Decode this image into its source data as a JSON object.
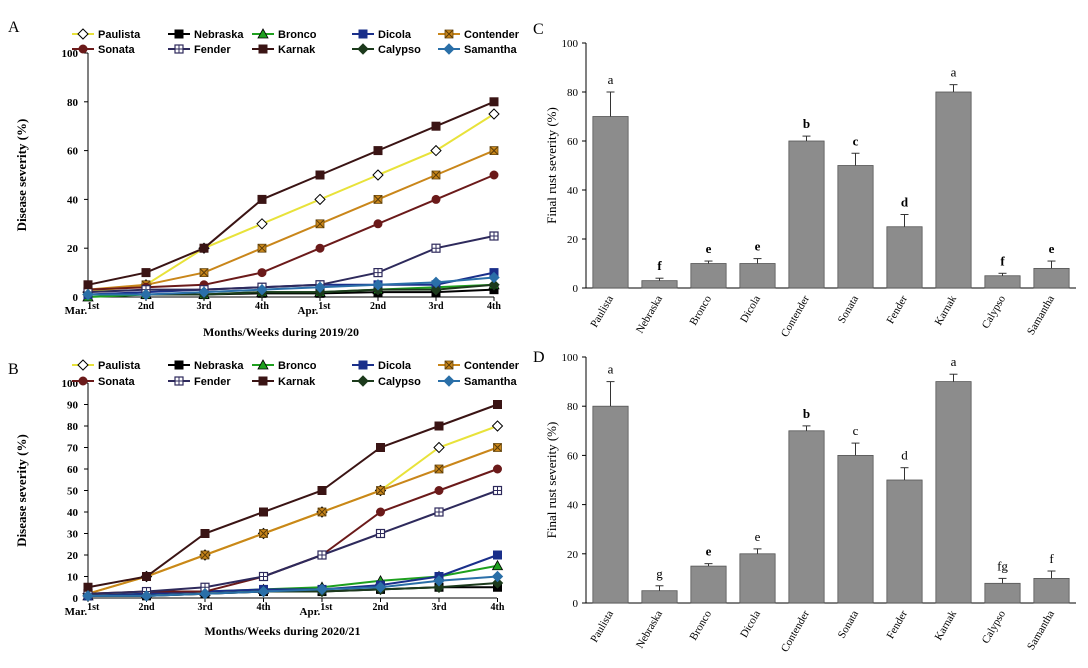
{
  "chart_data": [
    {
      "panel": "A",
      "type": "line",
      "title": "",
      "xlabel": "Months/Weeks during 2019/20",
      "ylabel": "Disease severity (%)",
      "ylim": [
        0,
        100
      ],
      "yticks": [
        0,
        20,
        40,
        60,
        80,
        100
      ],
      "categories": [
        {
          "main": "Mar.",
          "sup": "1st"
        },
        {
          "main": "",
          "sup": "2nd"
        },
        {
          "main": "",
          "sup": "3rd"
        },
        {
          "main": "",
          "sup": "4th"
        },
        {
          "main": "Apr.",
          "sup": "1st"
        },
        {
          "main": "",
          "sup": "2nd"
        },
        {
          "main": "",
          "sup": "3rd"
        },
        {
          "main": "",
          "sup": "4th"
        }
      ],
      "series": [
        {
          "name": "Paulista",
          "color": "#e8e23a",
          "marker": "diamond-open",
          "values": [
            2,
            5,
            20,
            30,
            40,
            50,
            60,
            75
          ]
        },
        {
          "name": "Nebraska",
          "color": "#000000",
          "marker": "square",
          "values": [
            1,
            1,
            1,
            1.5,
            1.5,
            2,
            2,
            3
          ]
        },
        {
          "name": "Bronco",
          "color": "#1ea01e",
          "marker": "triangle",
          "values": [
            0,
            1,
            1,
            2,
            2,
            3,
            4,
            5
          ]
        },
        {
          "name": "Dicola",
          "color": "#1a2f8a",
          "marker": "square",
          "values": [
            1,
            2,
            3,
            4,
            5,
            5,
            5,
            10
          ]
        },
        {
          "name": "Contender",
          "color": "#c9861a",
          "marker": "x-square",
          "values": [
            3,
            5,
            10,
            20,
            30,
            40,
            50,
            60
          ]
        },
        {
          "name": "Sonata",
          "color": "#6b1a1a",
          "marker": "circle",
          "values": [
            3,
            4,
            5,
            10,
            20,
            30,
            40,
            50
          ]
        },
        {
          "name": "Fender",
          "color": "#2e2a5c",
          "marker": "square-open-plus",
          "values": [
            2,
            3,
            3,
            4,
            5,
            10,
            20,
            25
          ]
        },
        {
          "name": "Karnak",
          "color": "#3a1414",
          "marker": "square",
          "values": [
            5,
            10,
            20,
            40,
            50,
            60,
            70,
            80
          ]
        },
        {
          "name": "Calypso",
          "color": "#1c3a1c",
          "marker": "diamond",
          "values": [
            1,
            1,
            1,
            2,
            2,
            3,
            3,
            5
          ]
        },
        {
          "name": "Samantha",
          "color": "#2a6fa8",
          "marker": "diamond",
          "values": [
            1,
            1,
            2,
            3,
            4,
            5,
            6,
            8
          ]
        }
      ]
    },
    {
      "panel": "B",
      "type": "line",
      "title": "",
      "xlabel": "Months/Weeks during 2020/21",
      "ylabel": "Disease severity (%)",
      "ylim": [
        0,
        100
      ],
      "yticks": [
        0,
        10,
        20,
        30,
        40,
        50,
        60,
        70,
        80,
        90,
        100
      ],
      "categories": [
        {
          "main": "Mar.",
          "sup": "1st"
        },
        {
          "main": "",
          "sup": "2nd"
        },
        {
          "main": "",
          "sup": "3rd"
        },
        {
          "main": "",
          "sup": "4th"
        },
        {
          "main": "Apr.",
          "sup": "1st"
        },
        {
          "main": "",
          "sup": "2nd"
        },
        {
          "main": "",
          "sup": "3rd"
        },
        {
          "main": "",
          "sup": "4th"
        }
      ],
      "series": [
        {
          "name": "Paulista",
          "color": "#e8e23a",
          "marker": "diamond-open",
          "values": [
            2,
            10,
            20,
            30,
            40,
            50,
            70,
            80
          ]
        },
        {
          "name": "Nebraska",
          "color": "#000000",
          "marker": "square",
          "values": [
            1,
            1,
            2,
            3,
            3,
            4,
            5,
            5
          ]
        },
        {
          "name": "Bronco",
          "color": "#1ea01e",
          "marker": "triangle",
          "values": [
            1,
            2,
            3,
            4,
            5,
            8,
            10,
            15
          ]
        },
        {
          "name": "Dicola",
          "color": "#1a2f8a",
          "marker": "square",
          "values": [
            1,
            2,
            3,
            4,
            4,
            6,
            10,
            20
          ]
        },
        {
          "name": "Contender",
          "color": "#c9861a",
          "marker": "x-square",
          "values": [
            2,
            10,
            20,
            30,
            40,
            50,
            60,
            70
          ]
        },
        {
          "name": "Sonata",
          "color": "#6b1a1a",
          "marker": "circle",
          "values": [
            2,
            3,
            3,
            10,
            20,
            40,
            50,
            60
          ]
        },
        {
          "name": "Fender",
          "color": "#2e2a5c",
          "marker": "square-open-plus",
          "values": [
            2,
            3,
            5,
            10,
            20,
            30,
            40,
            50
          ]
        },
        {
          "name": "Karnak",
          "color": "#3a1414",
          "marker": "square",
          "values": [
            5,
            10,
            30,
            40,
            50,
            70,
            80,
            90
          ]
        },
        {
          "name": "Calypso",
          "color": "#1c3a1c",
          "marker": "diamond",
          "values": [
            1,
            1,
            2,
            3,
            3,
            4,
            5,
            7
          ]
        },
        {
          "name": "Samantha",
          "color": "#2a6fa8",
          "marker": "diamond",
          "values": [
            1,
            1,
            2,
            3,
            4,
            5,
            8,
            10
          ]
        }
      ]
    },
    {
      "panel": "C",
      "type": "bar",
      "title": "",
      "xlabel": "",
      "ylabel": "Final rust severity (%)",
      "ylim": [
        0,
        100
      ],
      "yticks": [
        0,
        20,
        40,
        60,
        80,
        100
      ],
      "categories": [
        "Paulista",
        "Nebraska",
        "Bronco",
        "Dicola",
        "Contender",
        "Sonata",
        "Fender",
        "Karnak",
        "Calypso",
        "Samantha"
      ],
      "values": [
        70,
        3,
        10,
        10,
        60,
        50,
        25,
        80,
        5,
        8
      ],
      "errors": [
        10,
        1,
        1,
        2,
        2,
        5,
        5,
        3,
        1,
        3
      ],
      "letters": [
        "a",
        "f",
        "e",
        "e",
        "b",
        "c",
        "d",
        "a",
        "f",
        "e"
      ],
      "letter_bold": [
        false,
        true,
        true,
        true,
        true,
        true,
        true,
        false,
        true,
        true
      ],
      "bar_color": "#8c8c8c"
    },
    {
      "panel": "D",
      "type": "bar",
      "title": "",
      "xlabel": "",
      "ylabel": "Final rust severity (%)",
      "ylim": [
        0,
        100
      ],
      "yticks": [
        0,
        20,
        40,
        60,
        80,
        100
      ],
      "categories": [
        "Paulista",
        "Nebraska",
        "Bronco",
        "Dicola",
        "Contender",
        "Sonata",
        "Fender",
        "Karnak",
        "Calypso",
        "Samantha"
      ],
      "values": [
        80,
        5,
        15,
        20,
        70,
        60,
        50,
        90,
        8,
        10
      ],
      "errors": [
        10,
        2,
        1,
        2,
        2,
        5,
        5,
        3,
        2,
        3
      ],
      "letters": [
        "a",
        "g",
        "e",
        "e",
        "b",
        "c",
        "d",
        "a",
        "fg",
        "f"
      ],
      "letter_bold": [
        false,
        false,
        true,
        false,
        true,
        false,
        false,
        false,
        false,
        false
      ],
      "bar_color": "#8c8c8c"
    }
  ]
}
